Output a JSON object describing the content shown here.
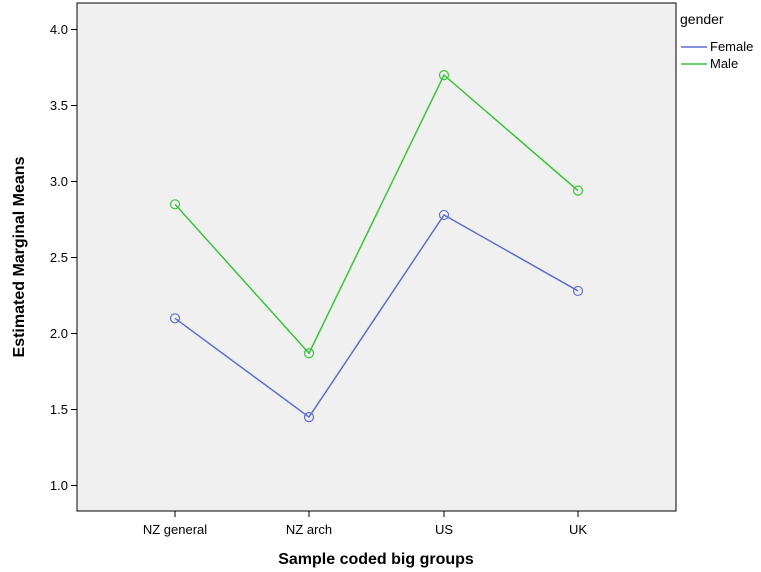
{
  "chart_data": {
    "type": "line",
    "title": "",
    "xlabel": "Sample coded big groups",
    "ylabel": "Estimated Marginal Means",
    "categories": [
      "NZ general",
      "NZ arch",
      "US",
      "UK"
    ],
    "ylim": [
      0.8,
      4.15
    ],
    "yticks": [
      1.0,
      1.5,
      2.0,
      2.5,
      3.0,
      3.5,
      4.0
    ],
    "ytick_labels": [
      "1.0",
      "1.5",
      "2.0",
      "2.5",
      "3.0",
      "3.5",
      "4.0"
    ],
    "grid": false,
    "legend": {
      "title": "gender",
      "position": "top-right"
    },
    "plot_background": "#f0f0f0",
    "series": [
      {
        "name": "Female",
        "color": "#5a6fcf",
        "values": [
          2.1,
          1.45,
          2.78,
          2.28
        ]
      },
      {
        "name": "Male",
        "color": "#3bc43b",
        "values": [
          2.85,
          1.87,
          3.7,
          2.94
        ]
      }
    ]
  }
}
